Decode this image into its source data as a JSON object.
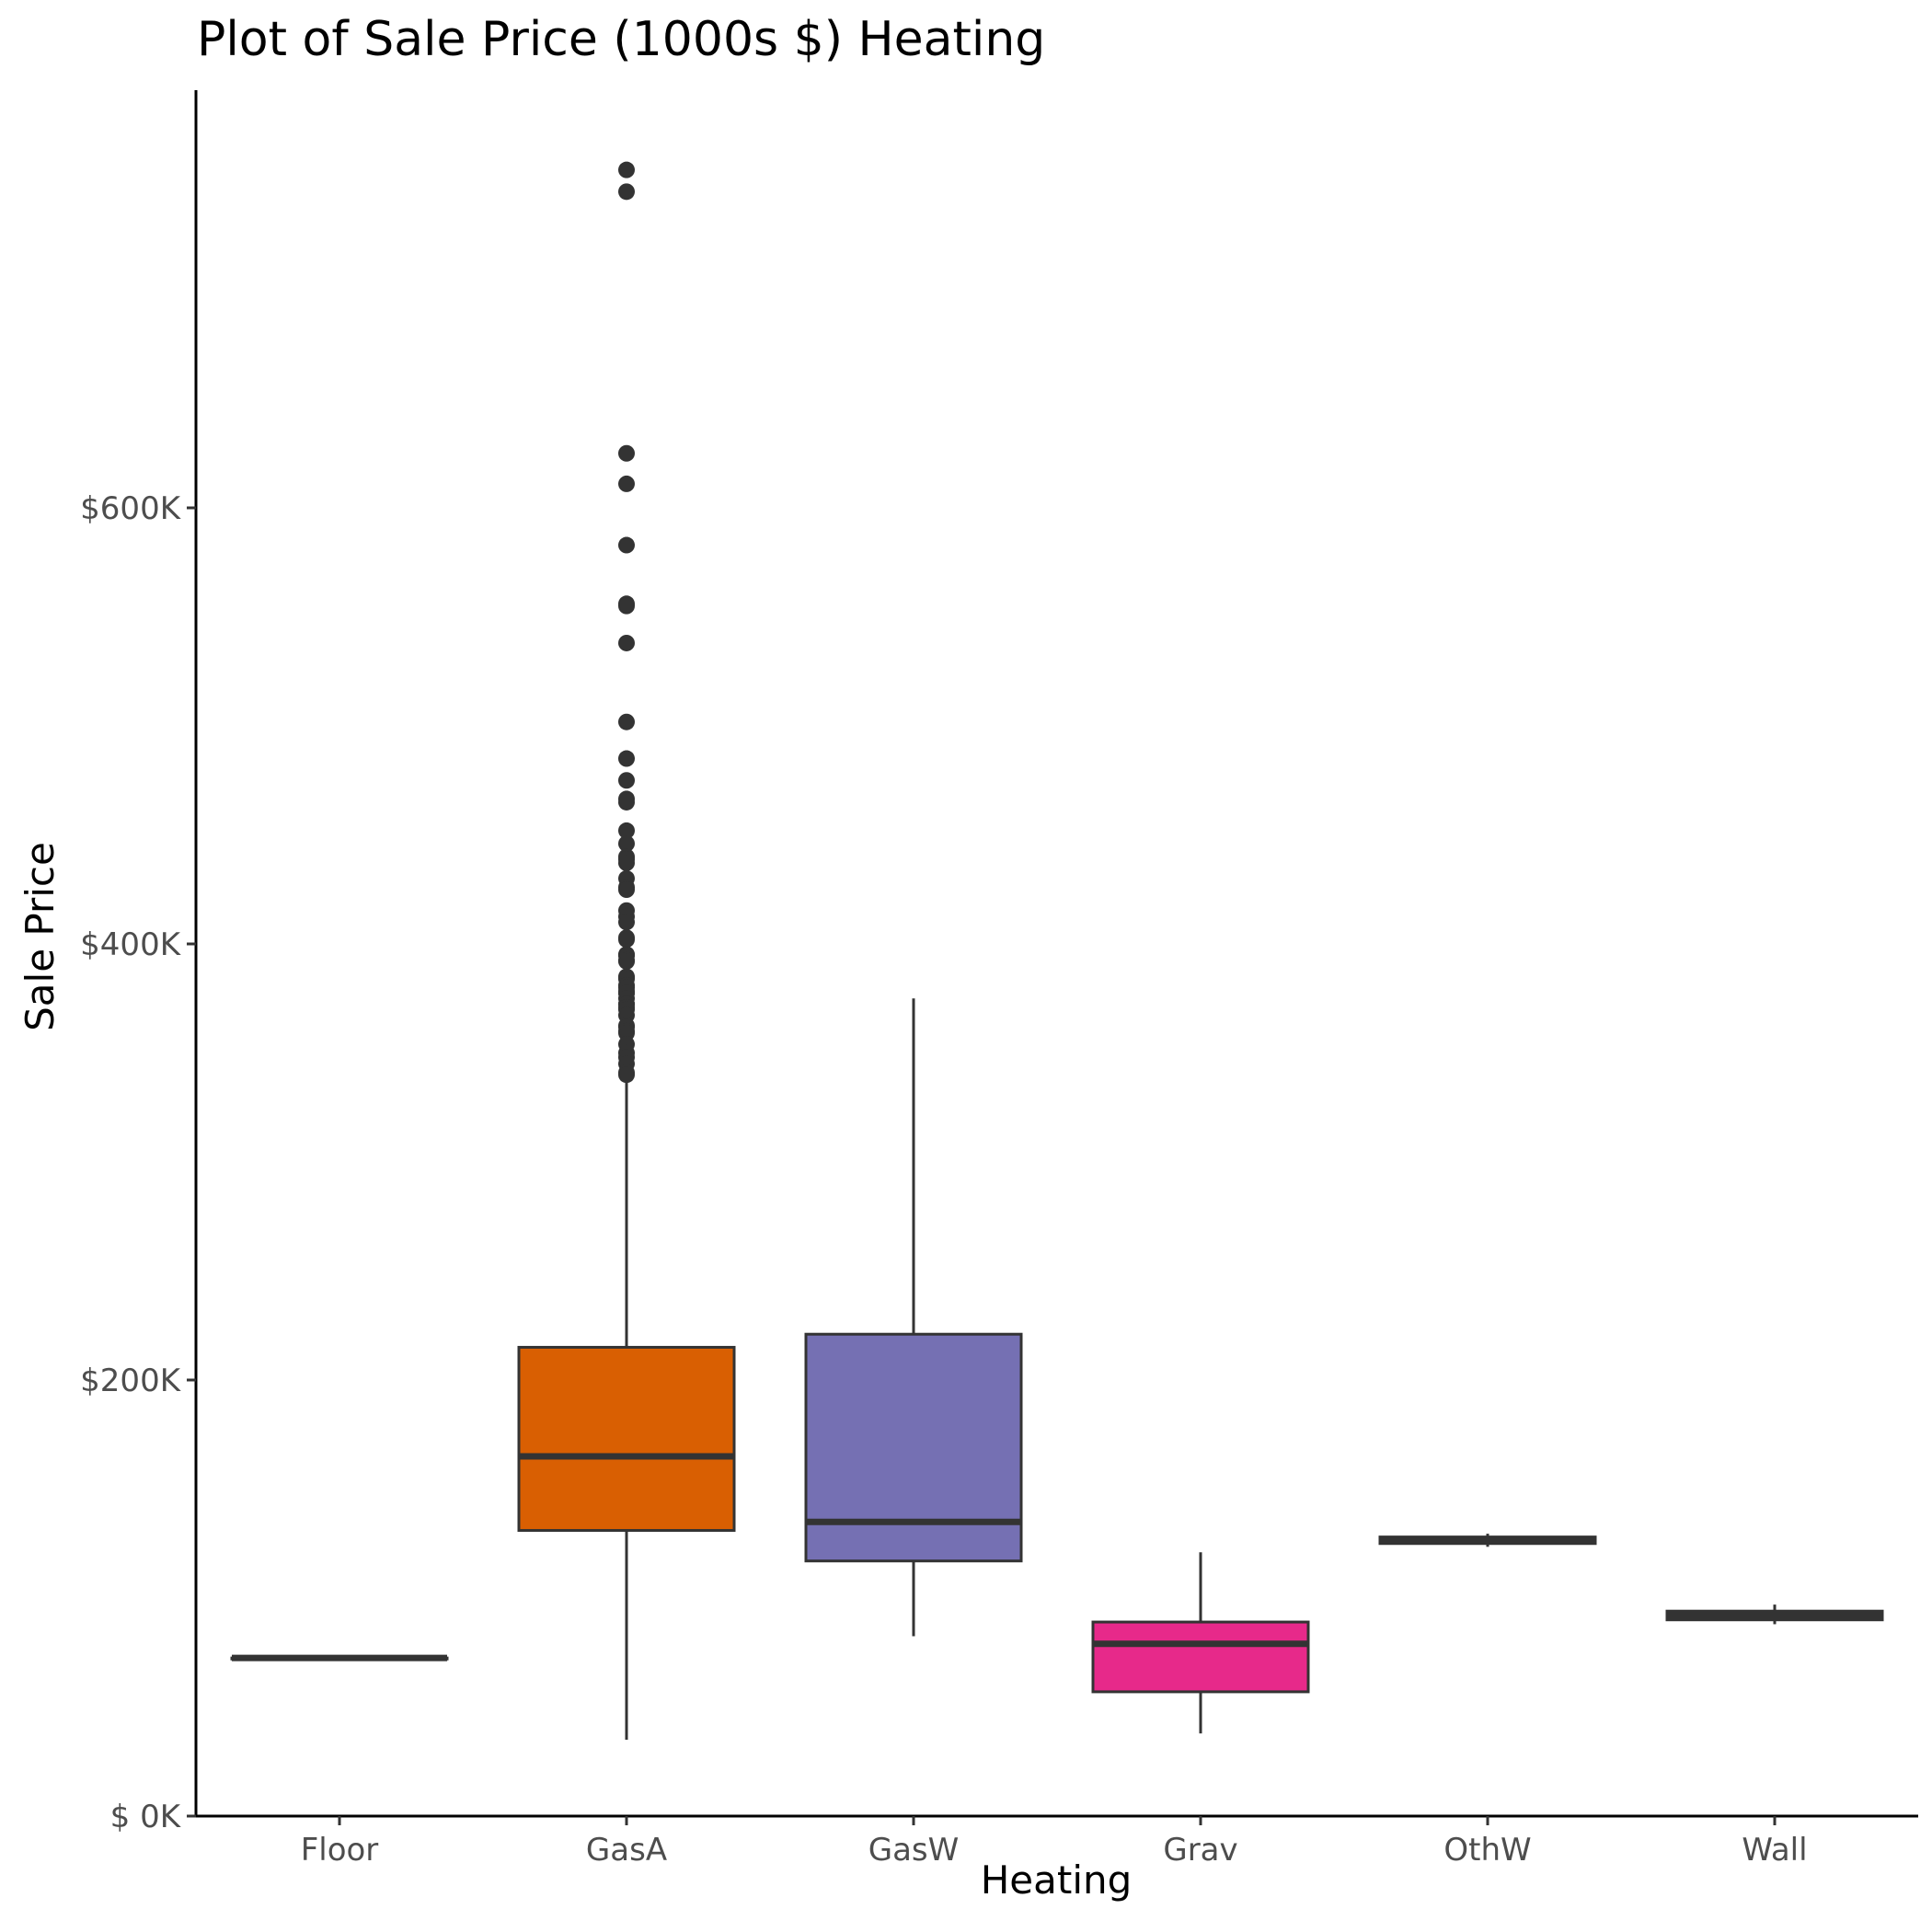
{
  "chart_data": {
    "type": "box",
    "title": "Plot of Sale Price (1000s $) Heating",
    "xlabel": "Heating",
    "ylabel": "Sale Price",
    "ylim": [
      0,
      770000
    ],
    "y_ticks": [
      {
        "value": 0,
        "label": "$  0K"
      },
      {
        "value": 200000,
        "label": "$200K"
      },
      {
        "value": 400000,
        "label": "$400K"
      },
      {
        "value": 600000,
        "label": "$600K"
      }
    ],
    "grid": false,
    "legend": "none",
    "categories": [
      "Floor",
      "GasA",
      "GasW",
      "Grav",
      "OthW",
      "Wall"
    ],
    "boxes": [
      {
        "category": "Floor",
        "min": 72500,
        "q1": 72500,
        "median": 72500,
        "q3": 72500,
        "max": 72500,
        "fill": "#1b9e77",
        "outliers": []
      },
      {
        "category": "GasA",
        "min": 35000,
        "q1": 131000,
        "median": 165000,
        "q3": 215000,
        "max": 340000,
        "fill": "#d95f02",
        "outliers": [
          755000,
          745000,
          625000,
          611000,
          582900,
          556000,
          555000,
          538000,
          501800,
          485000,
          475000,
          466500,
          465000,
          451950,
          446000,
          440000,
          438780,
          437154,
          430000,
          426000,
          424870,
          415298,
          412500,
          410000,
          402861,
          402000,
          395192,
          395000,
          394617,
          392500,
          392000,
          385000,
          384500,
          383970,
          381000,
          380000,
          378500,
          377500,
          377426,
          375000,
          372500,
          372402,
          370878,
          369900,
          367294,
          362500,
          361919,
          360000,
          359100,
          354000,
          350000,
          348000,
          345000,
          341000,
          340000
        ]
      },
      {
        "category": "GasW",
        "min": 82500,
        "q1": 117000,
        "median": 134900,
        "q3": 221000,
        "max": 375000,
        "fill": "#7570b3",
        "outliers": []
      },
      {
        "category": "Grav",
        "min": 37900,
        "q1": 57000,
        "median": 79000,
        "q3": 89000,
        "max": 121000,
        "fill": "#e7298a",
        "outliers": []
      },
      {
        "category": "OthW",
        "min": 123500,
        "q1": 125000,
        "median": 126500,
        "q3": 128000,
        "max": 129500,
        "fill": "#66a61e",
        "outliers": []
      },
      {
        "category": "Wall",
        "min": 88000,
        "q1": 90000,
        "median": 92000,
        "q3": 94000,
        "max": 97000,
        "fill": "#e6ab02",
        "outliers": []
      }
    ]
  }
}
